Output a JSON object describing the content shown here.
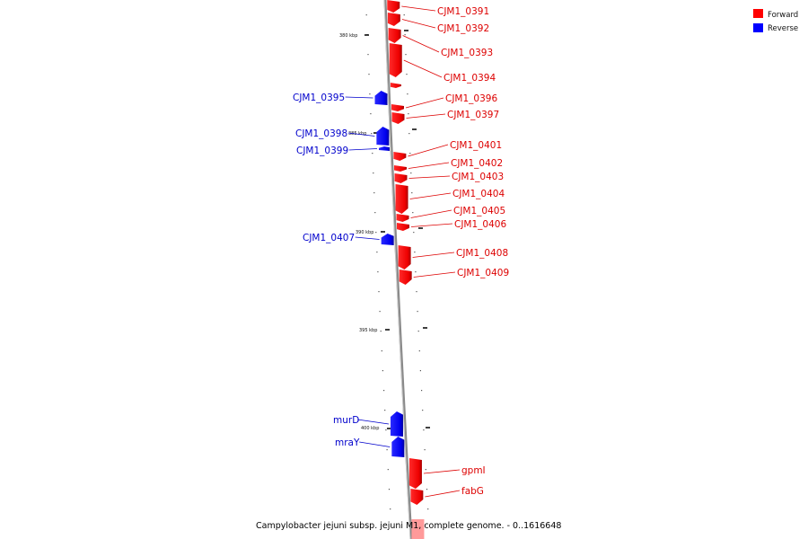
{
  "legend": [
    {
      "label": "Forward",
      "color": "#ff0000"
    },
    {
      "label": "Reverse",
      "color": "#0000ff"
    }
  ],
  "caption": "Campylobacter jejuni subsp. jejuni M1, complete genome. - 0..1616648",
  "ticks": [
    "380 kbp",
    "385 kbp",
    "390 kbp",
    "395 kbp",
    "400 kbp"
  ],
  "genes": [
    {
      "name": "CJM1_0391",
      "strand": "forward"
    },
    {
      "name": "CJM1_0392",
      "strand": "forward"
    },
    {
      "name": "CJM1_0393",
      "strand": "forward"
    },
    {
      "name": "CJM1_0394",
      "strand": "forward"
    },
    {
      "name": "CJM1_0395",
      "strand": "reverse"
    },
    {
      "name": "CJM1_0396",
      "strand": "forward"
    },
    {
      "name": "CJM1_0397",
      "strand": "forward"
    },
    {
      "name": "CJM1_0398",
      "strand": "reverse"
    },
    {
      "name": "CJM1_0399",
      "strand": "reverse"
    },
    {
      "name": "CJM1_0401",
      "strand": "forward"
    },
    {
      "name": "CJM1_0402",
      "strand": "forward"
    },
    {
      "name": "CJM1_0403",
      "strand": "forward"
    },
    {
      "name": "CJM1_0404",
      "strand": "forward"
    },
    {
      "name": "CJM1_0405",
      "strand": "forward"
    },
    {
      "name": "CJM1_0406",
      "strand": "forward"
    },
    {
      "name": "CJM1_0407",
      "strand": "reverse"
    },
    {
      "name": "CJM1_0408",
      "strand": "forward"
    },
    {
      "name": "CJM1_0409",
      "strand": "forward"
    },
    {
      "name": "murD",
      "strand": "reverse"
    },
    {
      "name": "mraY",
      "strand": "reverse"
    },
    {
      "name": "gpmI",
      "strand": "forward"
    },
    {
      "name": "fabG",
      "strand": "forward"
    }
  ]
}
